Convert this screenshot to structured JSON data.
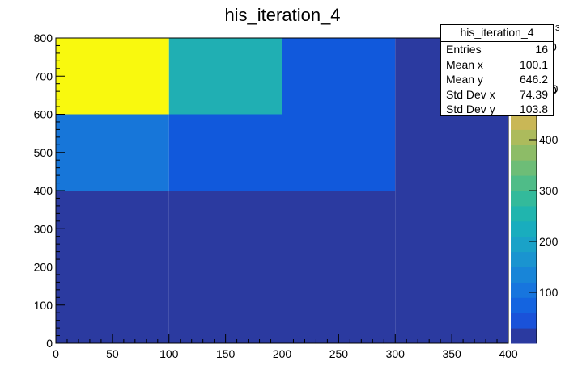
{
  "chart_data": {
    "type": "heatmap",
    "title": "his_iteration_4",
    "xlabel": "",
    "ylabel": "",
    "xlim": [
      0,
      400
    ],
    "ylim": [
      0,
      800
    ],
    "x_edges": [
      0,
      100,
      200,
      300,
      400
    ],
    "y_edges": [
      0,
      200,
      400,
      600,
      800
    ],
    "x_ticks": [
      0,
      50,
      100,
      150,
      200,
      250,
      300,
      350,
      400
    ],
    "y_ticks": [
      0,
      100,
      200,
      300,
      400,
      500,
      600,
      700,
      800
    ],
    "cells": [
      {
        "x": [
          0,
          100
        ],
        "y": [
          600,
          800
        ],
        "value": 600
      },
      {
        "x": [
          100,
          200
        ],
        "y": [
          600,
          800
        ],
        "value": 370
      },
      {
        "x": [
          200,
          300
        ],
        "y": [
          600,
          800
        ],
        "value": 80
      },
      {
        "x": [
          300,
          400
        ],
        "y": [
          600,
          800
        ],
        "value": 0
      },
      {
        "x": [
          0,
          100
        ],
        "y": [
          400,
          600
        ],
        "value": 150
      },
      {
        "x": [
          100,
          200
        ],
        "y": [
          400,
          600
        ],
        "value": 80
      },
      {
        "x": [
          200,
          300
        ],
        "y": [
          400,
          600
        ],
        "value": 80
      },
      {
        "x": [
          300,
          400
        ],
        "y": [
          400,
          600
        ],
        "value": 0
      },
      {
        "x": [
          0,
          100
        ],
        "y": [
          200,
          400
        ],
        "value": 0
      },
      {
        "x": [
          100,
          200
        ],
        "y": [
          200,
          400
        ],
        "value": 0
      },
      {
        "x": [
          200,
          300
        ],
        "y": [
          200,
          400
        ],
        "value": 0
      },
      {
        "x": [
          300,
          400
        ],
        "y": [
          200,
          400
        ],
        "value": 0
      },
      {
        "x": [
          0,
          100
        ],
        "y": [
          0,
          200
        ],
        "value": 0
      },
      {
        "x": [
          100,
          200
        ],
        "y": [
          0,
          200
        ],
        "value": 0
      },
      {
        "x": [
          200,
          300
        ],
        "y": [
          0,
          200
        ],
        "value": 0
      },
      {
        "x": [
          300,
          400
        ],
        "y": [
          0,
          200
        ],
        "value": 0
      }
    ],
    "colorbar": {
      "zlim": [
        0,
        600
      ],
      "ticks": [
        100,
        200,
        300,
        400,
        500
      ],
      "partial_labels": [
        "0",
        "0"
      ],
      "exponent_label": "3",
      "colors": [
        "#2b3aa0",
        "#1a52d9",
        "#1464e0",
        "#1775de",
        "#1885d8",
        "#1a94d0",
        "#1aa2c8",
        "#19adbe",
        "#20b5ae",
        "#33ba9b",
        "#4fbc88",
        "#6dbd77",
        "#8dbc67",
        "#acbb5c",
        "#c9b756",
        "#deb94f",
        "#efc23c",
        "#f8d52a",
        "#f9e81b",
        "#f9f90e"
      ]
    },
    "stats": {
      "title": "his_iteration_4",
      "rows": [
        {
          "label": "Entries",
          "value": "16"
        },
        {
          "label": "Mean x",
          "value": "100.1"
        },
        {
          "label": "Mean y",
          "value": "646.2"
        },
        {
          "label": "Std Dev x",
          "value": "74.39"
        },
        {
          "label": "Std Dev y",
          "value": "103.8"
        }
      ]
    },
    "cell_colors": {
      "0": "#2b3aa0",
      "80": "#1159dc",
      "150": "#1776d9",
      "370": "#20afb3",
      "600": "#f9f90e"
    }
  }
}
